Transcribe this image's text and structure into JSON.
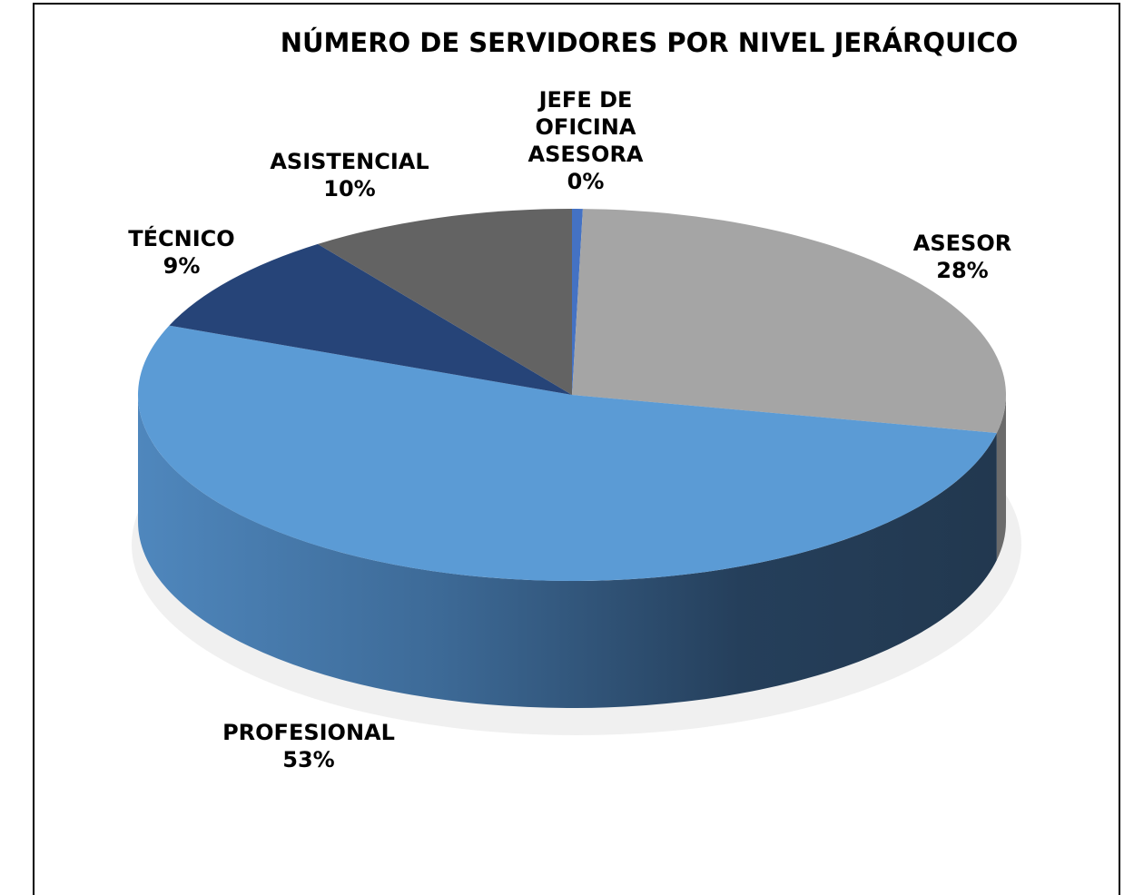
{
  "chart_data": {
    "type": "pie",
    "title": "NÚMERO DE SERVIDORES POR NIVEL JERÁRQUICO",
    "categories": [
      "JEFE DE OFICINA ASESORA",
      "ASESOR",
      "PROFESIONAL",
      "TÉCNICO",
      "ASISTENCIAL"
    ],
    "values": [
      0.4,
      28,
      53,
      9,
      10
    ],
    "value_labels": [
      "0%",
      "28%",
      "53%",
      "9%",
      "10%"
    ],
    "colors": [
      "#4472c4",
      "#a5a5a5",
      "#5b9bd5",
      "#264478",
      "#636363"
    ]
  }
}
